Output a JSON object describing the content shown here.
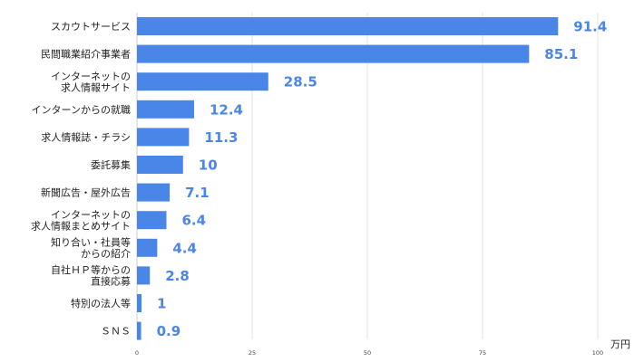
{
  "chart_data": {
    "type": "bar",
    "orientation": "horizontal",
    "categories": [
      [
        "スカウトサービス"
      ],
      [
        "民間職業紹介事業者"
      ],
      [
        "インターネットの",
        "求人情報サイト"
      ],
      [
        "インターンからの就職"
      ],
      [
        "求人情報誌・チラシ"
      ],
      [
        "委託募集"
      ],
      [
        "新聞広告・屋外広告"
      ],
      [
        "インターネットの",
        "求人情報まとめサイト"
      ],
      [
        "知り合い・社員等",
        "からの紹介"
      ],
      [
        "自社ＨＰ等からの",
        "直接応募"
      ],
      [
        "特別の法人等"
      ],
      [
        "ＳＮＳ"
      ]
    ],
    "values": [
      91.4,
      85.1,
      28.5,
      12.4,
      11.3,
      10,
      7.1,
      6.4,
      4.4,
      2.8,
      1,
      0.9
    ],
    "value_labels": [
      "91.4",
      "85.1",
      "28.5",
      "12.4",
      "11.3",
      "10",
      "7.1",
      "6.4",
      "4.4",
      "2.8",
      "1",
      "0.9"
    ],
    "xlim": [
      0,
      100
    ],
    "xticks": [
      0,
      25,
      50,
      75,
      100
    ],
    "unit": "万円",
    "grid": true,
    "bar_color": "#4A86E8",
    "label_color": "#4A86E8"
  }
}
